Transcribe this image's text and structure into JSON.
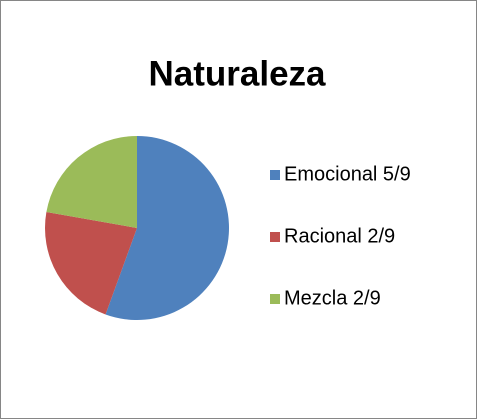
{
  "chart_data": {
    "type": "pie",
    "title": "Naturaleza",
    "categories": [
      "Emocional 5/9",
      "Racional 2/9",
      "Mezcla 2/9"
    ],
    "values": [
      5,
      2,
      2
    ],
    "colors": [
      "#4f81bd",
      "#c0504d",
      "#9bbb59"
    ],
    "legend": "right"
  }
}
